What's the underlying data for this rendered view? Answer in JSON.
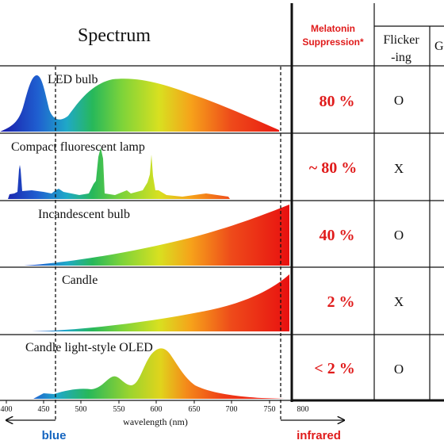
{
  "header": {
    "spectrum_title": "Spectrum",
    "melatonin_line1": "Melatonin",
    "melatonin_line2": "Suppression*",
    "flicker_line1": "Flicker",
    "flicker_line2": "-ing",
    "partial_col": "G"
  },
  "rows": [
    {
      "name": "LED bulb",
      "melatonin": "80 %",
      "flicker": "O"
    },
    {
      "name": "Compact fluorescent lamp",
      "melatonin": "~ 80 %",
      "flicker": "X"
    },
    {
      "name": "Incandescent bulb",
      "melatonin": "40 %",
      "flicker": "O"
    },
    {
      "name": "Candle",
      "melatonin": "2 %",
      "flicker": "X"
    },
    {
      "name": "Candle light-style OLED",
      "melatonin": "< 2 %",
      "flicker": "O"
    }
  ],
  "axis": {
    "ticks": [
      "400",
      "450",
      "500",
      "550",
      "600",
      "650",
      "700",
      "750",
      "800"
    ],
    "label": "wavelength (nm)",
    "blue_label": "blue",
    "infrared_label": "infrared"
  },
  "colors": {
    "accent_red": "#e01b1b",
    "blue_label": "#1565c0",
    "spectrum_stops": [
      "#1a1aa8",
      "#1f5fd0",
      "#1fa8c8",
      "#27b85a",
      "#7cd33a",
      "#d8e020",
      "#f6a21a",
      "#ee4a1a",
      "#e81010"
    ]
  }
}
